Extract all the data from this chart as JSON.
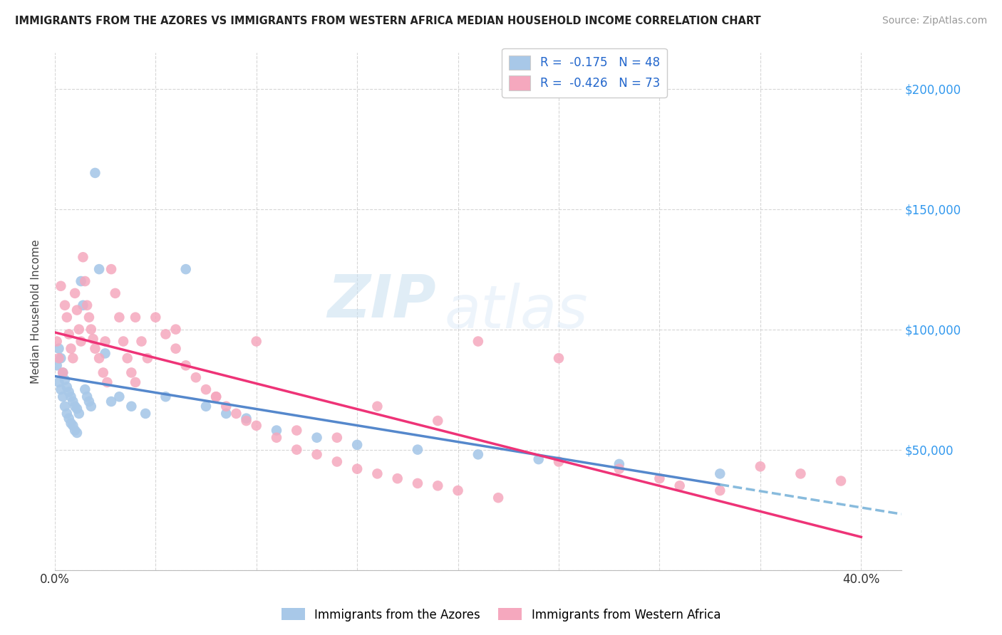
{
  "title": "IMMIGRANTS FROM THE AZORES VS IMMIGRANTS FROM WESTERN AFRICA MEDIAN HOUSEHOLD INCOME CORRELATION CHART",
  "source": "Source: ZipAtlas.com",
  "ylabel": "Median Household Income",
  "xlim": [
    0.0,
    0.42
  ],
  "ylim": [
    0,
    215000
  ],
  "yticks": [
    0,
    50000,
    100000,
    150000,
    200000
  ],
  "ytick_labels_right": [
    "",
    "$50,000",
    "$100,000",
    "$150,000",
    "$200,000"
  ],
  "xtick_positions": [
    0.0,
    0.05,
    0.1,
    0.15,
    0.2,
    0.25,
    0.3,
    0.35,
    0.4
  ],
  "xtick_labels": [
    "0.0%",
    "",
    "",
    "",
    "",
    "",
    "",
    "",
    "40.0%"
  ],
  "color_azores": "#a8c8e8",
  "color_western_africa": "#f5a8be",
  "color_line_azores_solid": "#5588cc",
  "color_line_azores_dash": "#88bbdd",
  "color_line_wa": "#ee3377",
  "label_azores": "Immigrants from the Azores",
  "label_western_africa": "Immigrants from Western Africa",
  "legend_r1": "R =  -0.175   N = 48",
  "legend_r2": "R =  -0.426   N = 73",
  "watermark_zip": "ZIP",
  "watermark_atlas": "atlas",
  "azores_x": [
    0.001,
    0.002,
    0.002,
    0.003,
    0.003,
    0.004,
    0.004,
    0.005,
    0.005,
    0.006,
    0.006,
    0.007,
    0.007,
    0.008,
    0.008,
    0.009,
    0.009,
    0.01,
    0.01,
    0.011,
    0.011,
    0.012,
    0.013,
    0.014,
    0.015,
    0.016,
    0.017,
    0.018,
    0.02,
    0.022,
    0.025,
    0.028,
    0.032,
    0.038,
    0.045,
    0.055,
    0.065,
    0.075,
    0.085,
    0.095,
    0.11,
    0.13,
    0.15,
    0.18,
    0.21,
    0.24,
    0.28,
    0.33
  ],
  "azores_y": [
    85000,
    92000,
    78000,
    88000,
    75000,
    82000,
    72000,
    79000,
    68000,
    76000,
    65000,
    74000,
    63000,
    72000,
    61000,
    70000,
    60000,
    68000,
    58000,
    67000,
    57000,
    65000,
    120000,
    110000,
    75000,
    72000,
    70000,
    68000,
    165000,
    125000,
    90000,
    70000,
    72000,
    68000,
    65000,
    72000,
    125000,
    68000,
    65000,
    63000,
    58000,
    55000,
    52000,
    50000,
    48000,
    46000,
    44000,
    40000
  ],
  "wa_x": [
    0.001,
    0.002,
    0.003,
    0.004,
    0.005,
    0.006,
    0.007,
    0.008,
    0.009,
    0.01,
    0.011,
    0.012,
    0.013,
    0.014,
    0.015,
    0.016,
    0.017,
    0.018,
    0.019,
    0.02,
    0.022,
    0.024,
    0.026,
    0.028,
    0.03,
    0.032,
    0.034,
    0.036,
    0.038,
    0.04,
    0.043,
    0.046,
    0.05,
    0.055,
    0.06,
    0.065,
    0.07,
    0.075,
    0.08,
    0.085,
    0.09,
    0.095,
    0.1,
    0.11,
    0.12,
    0.13,
    0.14,
    0.15,
    0.16,
    0.17,
    0.18,
    0.19,
    0.2,
    0.22,
    0.25,
    0.28,
    0.3,
    0.31,
    0.33,
    0.35,
    0.37,
    0.39,
    0.25,
    0.21,
    0.19,
    0.16,
    0.14,
    0.12,
    0.1,
    0.08,
    0.06,
    0.04,
    0.025
  ],
  "wa_y": [
    95000,
    88000,
    118000,
    82000,
    110000,
    105000,
    98000,
    92000,
    88000,
    115000,
    108000,
    100000,
    95000,
    130000,
    120000,
    110000,
    105000,
    100000,
    96000,
    92000,
    88000,
    82000,
    78000,
    125000,
    115000,
    105000,
    95000,
    88000,
    82000,
    78000,
    95000,
    88000,
    105000,
    98000,
    92000,
    85000,
    80000,
    75000,
    72000,
    68000,
    65000,
    62000,
    60000,
    55000,
    50000,
    48000,
    45000,
    42000,
    40000,
    38000,
    36000,
    35000,
    33000,
    30000,
    45000,
    42000,
    38000,
    35000,
    33000,
    43000,
    40000,
    37000,
    88000,
    95000,
    62000,
    68000,
    55000,
    58000,
    95000,
    72000,
    100000,
    105000,
    95000
  ]
}
